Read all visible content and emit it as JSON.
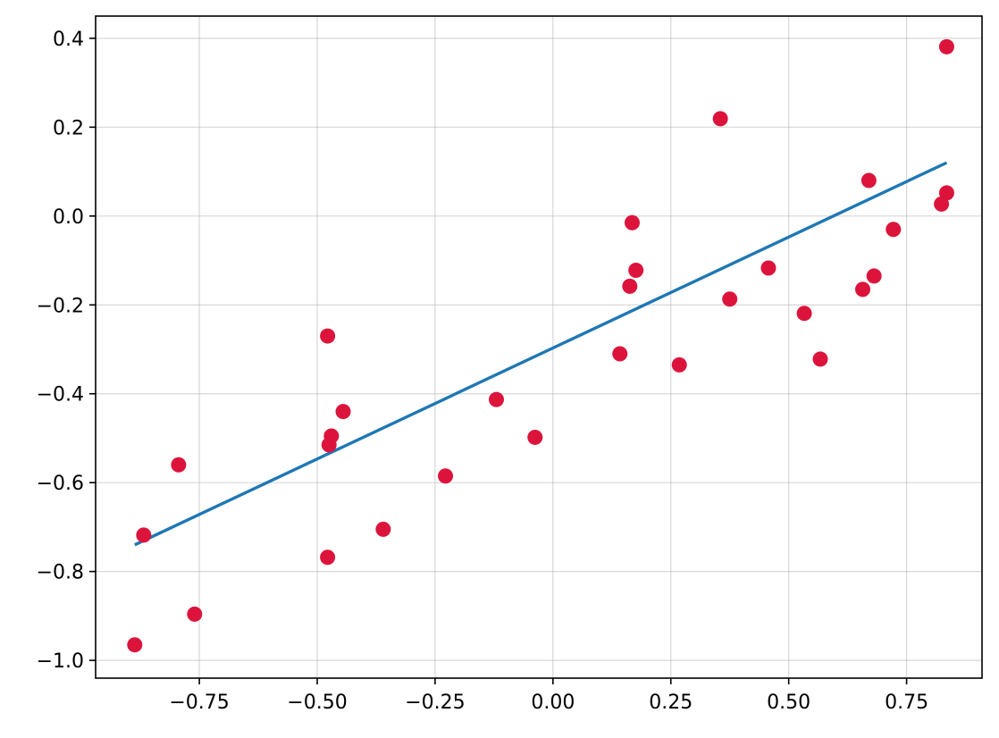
{
  "chart_data": {
    "type": "scatter",
    "title": "",
    "xlabel": "",
    "ylabel": "",
    "xlim": [
      -0.97,
      0.91
    ],
    "ylim": [
      -1.04,
      0.45
    ],
    "grid": true,
    "x_ticks": [
      -0.75,
      -0.5,
      -0.25,
      0.0,
      0.25,
      0.5,
      0.75
    ],
    "x_tick_labels": [
      "−0.75",
      "−0.50",
      "−0.25",
      "0.00",
      "0.25",
      "0.50",
      "0.75"
    ],
    "y_ticks": [
      0.4,
      0.2,
      0.0,
      -0.2,
      -0.4,
      -0.6,
      -0.8,
      -1.0
    ],
    "y_tick_labels": [
      "0.4",
      "0.2",
      "0.0",
      "−0.2",
      "−0.4",
      "−0.6",
      "−0.8",
      "−1.0"
    ],
    "scatter_color": "#dc143c",
    "line_color": "#1f77b4",
    "points": [
      {
        "x": -0.887,
        "y": -0.965
      },
      {
        "x": -0.868,
        "y": -0.718
      },
      {
        "x": -0.794,
        "y": -0.56
      },
      {
        "x": -0.76,
        "y": -0.896
      },
      {
        "x": -0.478,
        "y": -0.27
      },
      {
        "x": -0.475,
        "y": -0.515
      },
      {
        "x": -0.47,
        "y": -0.495
      },
      {
        "x": -0.478,
        "y": -0.768
      },
      {
        "x": -0.445,
        "y": -0.44
      },
      {
        "x": -0.36,
        "y": -0.705
      },
      {
        "x": -0.228,
        "y": -0.585
      },
      {
        "x": -0.12,
        "y": -0.413
      },
      {
        "x": -0.038,
        "y": -0.498
      },
      {
        "x": 0.142,
        "y": -0.31
      },
      {
        "x": 0.163,
        "y": -0.158
      },
      {
        "x": 0.168,
        "y": -0.015
      },
      {
        "x": 0.176,
        "y": -0.122
      },
      {
        "x": 0.268,
        "y": -0.335
      },
      {
        "x": 0.355,
        "y": 0.219
      },
      {
        "x": 0.375,
        "y": -0.187
      },
      {
        "x": 0.457,
        "y": -0.117
      },
      {
        "x": 0.533,
        "y": -0.219
      },
      {
        "x": 0.567,
        "y": -0.322
      },
      {
        "x": 0.657,
        "y": -0.165
      },
      {
        "x": 0.67,
        "y": 0.08
      },
      {
        "x": 0.681,
        "y": -0.135
      },
      {
        "x": 0.722,
        "y": -0.03
      },
      {
        "x": 0.824,
        "y": 0.027
      },
      {
        "x": 0.835,
        "y": 0.052
      },
      {
        "x": 0.835,
        "y": 0.381
      }
    ],
    "fit_line": {
      "x": [
        -0.887,
        0.835
      ],
      "y": [
        -0.74,
        0.12
      ]
    }
  }
}
